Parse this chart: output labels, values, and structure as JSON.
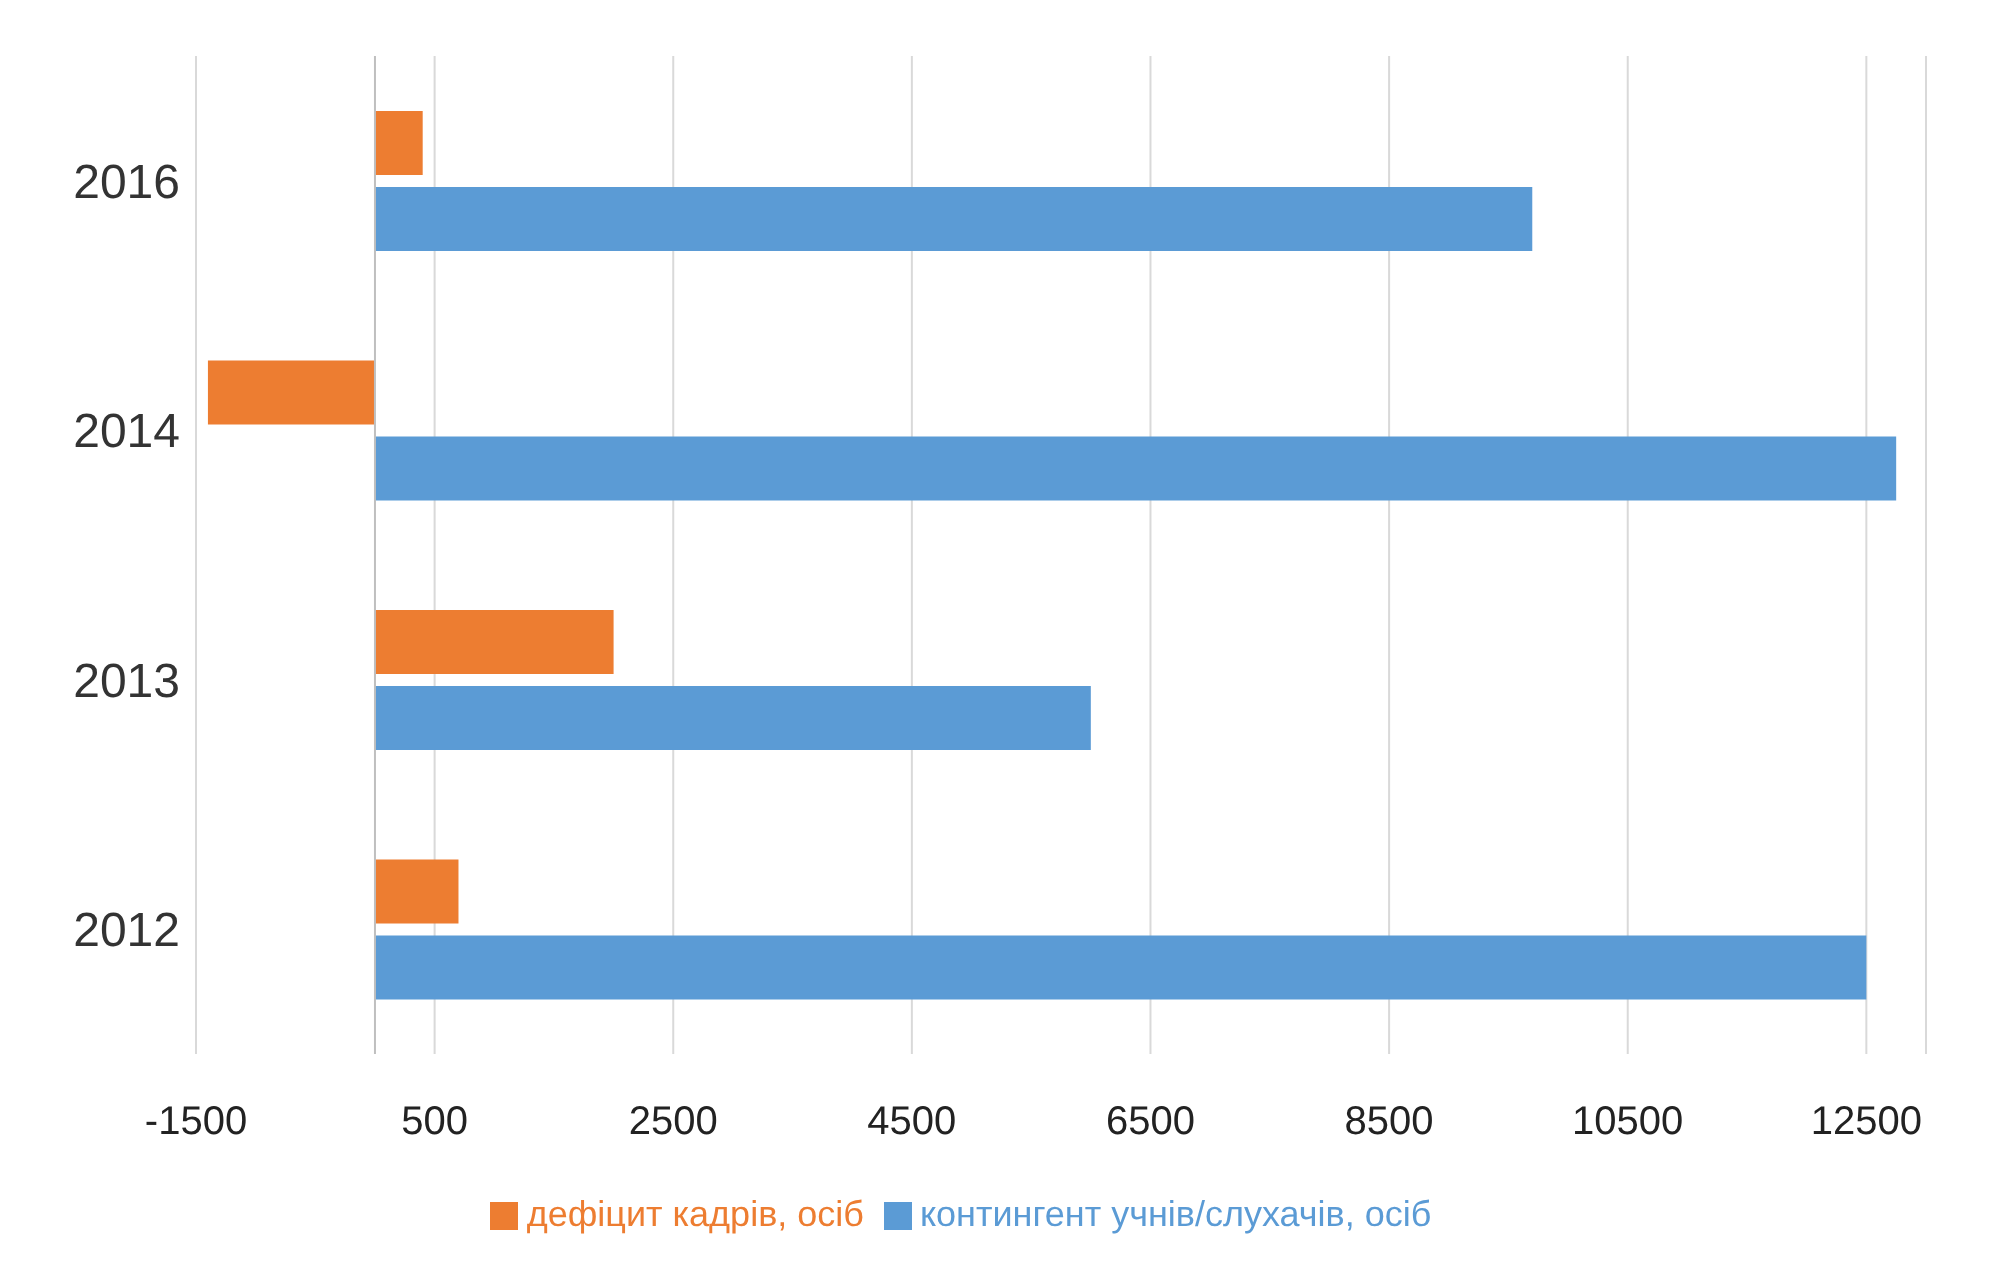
{
  "chart_data": {
    "type": "bar",
    "orientation": "horizontal",
    "categories": [
      "2016",
      "2014",
      "2013",
      "2012"
    ],
    "series": [
      {
        "name": "дефіцит кадрів, осіб",
        "color": "#ed7d31",
        "values": [
          400,
          -1400,
          2000,
          700
        ]
      },
      {
        "name": "контингент учнів/слухачів, осіб",
        "color": "#5b9bd5",
        "values": [
          9700,
          12750,
          6000,
          12500
        ]
      }
    ],
    "xlim": [
      -1500,
      13000
    ],
    "xticks": [
      -1500,
      500,
      2500,
      4500,
      6500,
      8500,
      10500,
      12500
    ],
    "grid": "x",
    "legend": "bottom"
  }
}
